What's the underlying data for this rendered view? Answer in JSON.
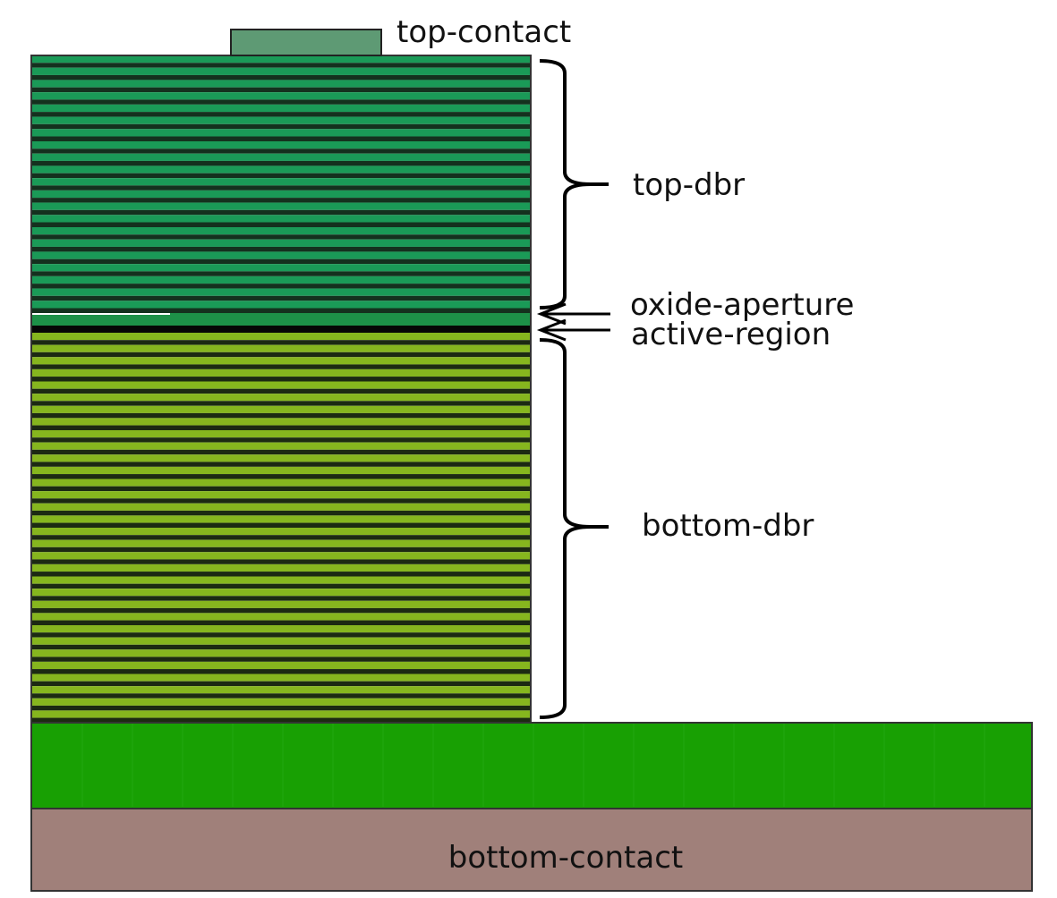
{
  "labels": {
    "top_contact": "top-contact",
    "top_dbr": "top-dbr",
    "oxide_aperture": "oxide-aperture",
    "active_region": "active-region",
    "bottom_dbr": "bottom-dbr",
    "bottom_contact": "bottom-contact"
  },
  "colors": {
    "top_dbr_stripe": "#1a9a57",
    "top_dbr_dark": "#14311e",
    "bottom_dbr_stripe": "#86b61e",
    "bottom_dbr_dark": "#1c2a12",
    "substrate": "#18a003",
    "bottom_contact": "#a0807a",
    "top_contact": "#5e9a74",
    "active_region": "#060606",
    "oxide_layer": "#1d9148",
    "outline": "#333333"
  },
  "structure": {
    "top_dbr_periods": 21,
    "bottom_dbr_periods": 32
  }
}
